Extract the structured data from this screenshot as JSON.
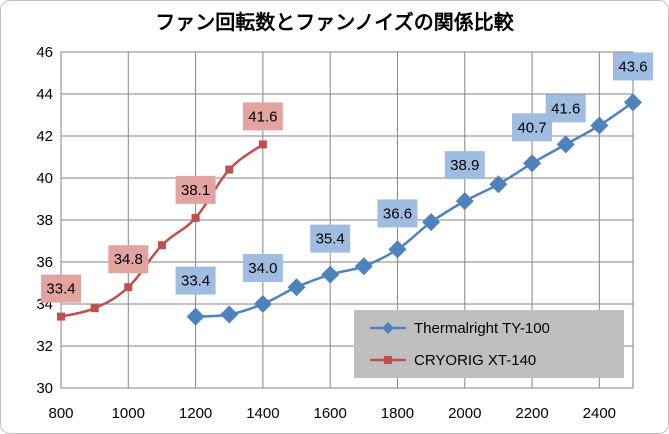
{
  "chart_data": {
    "type": "line",
    "title": "ファン回転数とファンノイズの関係比較",
    "xlabel": "",
    "ylabel": "",
    "xlim": [
      800,
      2500
    ],
    "ylim": [
      30,
      46
    ],
    "xticks": [
      800,
      1000,
      1200,
      1400,
      1600,
      1800,
      2000,
      2200,
      2400
    ],
    "yticks": [
      30,
      32,
      34,
      36,
      38,
      40,
      42,
      44,
      46
    ],
    "grid": true,
    "legend_position": "bottom-right",
    "series": [
      {
        "name": "Thermalright TY-100",
        "color": "#4f81bd",
        "marker": "diamond",
        "label_bg": "#9fbde0",
        "x": [
          1200,
          1300,
          1400,
          1500,
          1600,
          1700,
          1800,
          1900,
          2000,
          2100,
          2200,
          2300,
          2400,
          2500
        ],
        "y": [
          33.4,
          33.5,
          34.0,
          34.8,
          35.4,
          35.8,
          36.6,
          37.9,
          38.9,
          39.7,
          40.7,
          41.6,
          42.5,
          43.6
        ],
        "labels": [
          "33.4",
          null,
          "34.0",
          null,
          "35.4",
          null,
          "36.6",
          null,
          "38.9",
          null,
          "40.7",
          "41.6",
          null,
          "43.6"
        ]
      },
      {
        "name": "CRYORIG XT-140",
        "color": "#c0504d",
        "marker": "square",
        "label_bg": "#e3a3a1",
        "x": [
          800,
          900,
          1000,
          1100,
          1200,
          1300,
          1400
        ],
        "y": [
          33.4,
          33.8,
          34.8,
          36.8,
          38.1,
          40.4,
          41.6
        ],
        "labels": [
          "33.4",
          null,
          "34.8",
          null,
          "38.1",
          null,
          "41.6"
        ]
      }
    ]
  }
}
